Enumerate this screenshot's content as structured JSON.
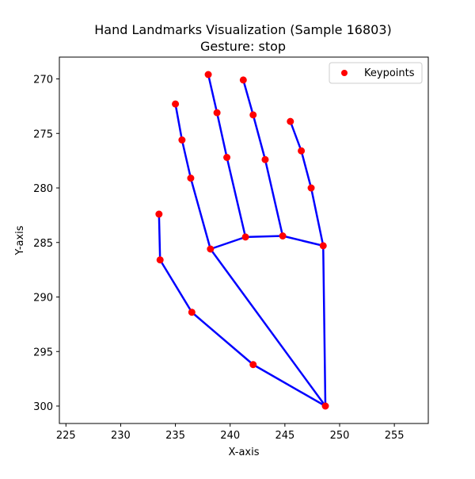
{
  "chart_data": {
    "type": "scatter",
    "title": "Hand Landmarks Visualization (Sample 16803)",
    "subtitle": "Gesture: stop",
    "xlabel": "X-axis",
    "ylabel": "Y-axis",
    "xlim": [
      224.4,
      258.1
    ],
    "ylim": [
      301.6,
      268.0
    ],
    "y_inverted": true,
    "xticks": [
      225,
      230,
      235,
      240,
      245,
      250,
      255
    ],
    "yticks": [
      270,
      275,
      280,
      285,
      290,
      295,
      300
    ],
    "grid": false,
    "legend": {
      "position": "top-right",
      "entries": [
        {
          "label": "Keypoints",
          "marker": "circle",
          "color": "#ff0000"
        }
      ]
    },
    "point_color": "#ff0000",
    "line_color": "#0000ff",
    "points": [
      {
        "x": 248.7,
        "y": 300.0
      },
      {
        "x": 242.1,
        "y": 296.2
      },
      {
        "x": 236.5,
        "y": 291.4
      },
      {
        "x": 233.6,
        "y": 286.6
      },
      {
        "x": 233.5,
        "y": 282.4
      },
      {
        "x": 238.2,
        "y": 285.6
      },
      {
        "x": 236.4,
        "y": 279.1
      },
      {
        "x": 235.6,
        "y": 275.6
      },
      {
        "x": 235.0,
        "y": 272.3
      },
      {
        "x": 241.4,
        "y": 284.5
      },
      {
        "x": 239.7,
        "y": 277.2
      },
      {
        "x": 238.8,
        "y": 273.1
      },
      {
        "x": 238.0,
        "y": 269.6
      },
      {
        "x": 244.8,
        "y": 284.4
      },
      {
        "x": 243.2,
        "y": 277.4
      },
      {
        "x": 242.1,
        "y": 273.3
      },
      {
        "x": 241.2,
        "y": 270.1
      },
      {
        "x": 248.5,
        "y": 285.3
      },
      {
        "x": 247.4,
        "y": 280.0
      },
      {
        "x": 246.5,
        "y": 276.6
      },
      {
        "x": 245.5,
        "y": 273.9
      }
    ],
    "connections": [
      [
        0,
        1
      ],
      [
        1,
        2
      ],
      [
        2,
        3
      ],
      [
        3,
        4
      ],
      [
        0,
        5
      ],
      [
        5,
        6
      ],
      [
        6,
        7
      ],
      [
        7,
        8
      ],
      [
        5,
        9
      ],
      [
        9,
        10
      ],
      [
        10,
        11
      ],
      [
        11,
        12
      ],
      [
        9,
        13
      ],
      [
        13,
        14
      ],
      [
        14,
        15
      ],
      [
        15,
        16
      ],
      [
        13,
        17
      ],
      [
        17,
        18
      ],
      [
        18,
        19
      ],
      [
        19,
        20
      ],
      [
        0,
        17
      ]
    ]
  }
}
